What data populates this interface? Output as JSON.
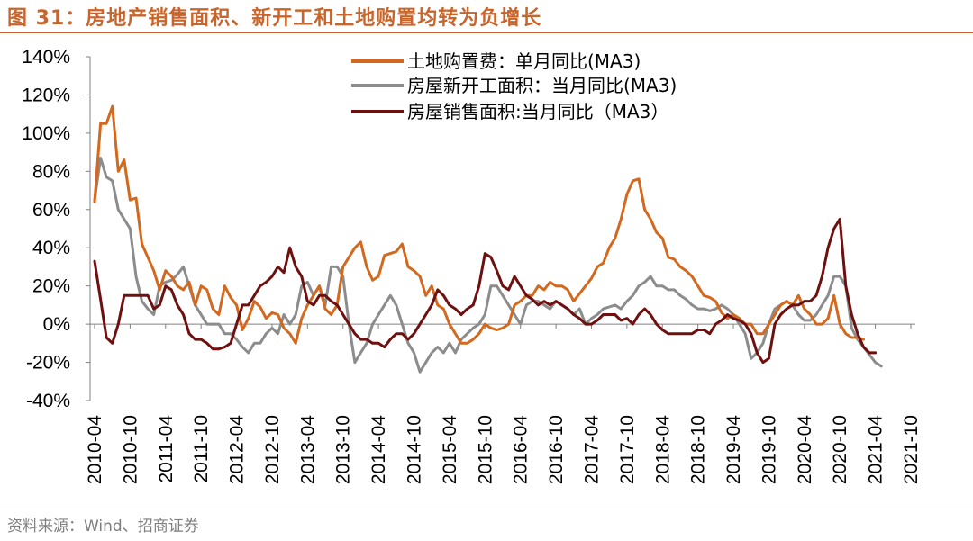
{
  "figure": {
    "label": "图 31：",
    "title": "房地产销售面积、新开工和土地购置均转为负增长",
    "source": "资料来源：Wind、招商证券"
  },
  "chart_data": {
    "type": "line",
    "title": "房地产销售面积、新开工和土地购置均转为负增长",
    "xlabel": "",
    "ylabel": "",
    "ylim": [
      -40,
      140
    ],
    "y_ticks": [
      "140%",
      "120%",
      "100%",
      "80%",
      "60%",
      "40%",
      "20%",
      "0%",
      "-20%",
      "-40%"
    ],
    "y_tick_values": [
      140,
      120,
      100,
      80,
      60,
      40,
      20,
      0,
      -20,
      -40
    ],
    "x_tick_labels": [
      "2010-04",
      "2010-10",
      "2011-04",
      "2011-10",
      "2012-04",
      "2012-10",
      "2013-04",
      "2013-10",
      "2014-04",
      "2014-10",
      "2015-04",
      "2015-10",
      "2016-04",
      "2016-10",
      "2017-04",
      "2017-10",
      "2018-04",
      "2018-10",
      "2019-04",
      "2019-10",
      "2020-04",
      "2020-10",
      "2021-04",
      "2021-10"
    ],
    "x_start": "2010-04",
    "legend_position": "top-center",
    "grid": false,
    "series": [
      {
        "name": "土地购置费：单月同比(MA3)",
        "color": "#d2691e",
        "values": [
          64,
          105,
          105,
          114,
          80,
          86,
          65,
          66,
          42,
          35,
          28,
          18,
          28,
          25,
          20,
          18,
          22,
          10,
          20,
          18,
          8,
          5,
          20,
          14,
          10,
          -3,
          3,
          12,
          9,
          3,
          6,
          5,
          -2,
          -5,
          -10,
          3,
          10,
          15,
          20,
          8,
          5,
          10,
          30,
          35,
          40,
          43,
          30,
          23,
          25,
          36,
          37,
          38,
          42,
          30,
          28,
          25,
          15,
          20,
          10,
          8,
          0,
          -5,
          -10,
          -10,
          -8,
          -5,
          0,
          -2,
          -3,
          -2,
          0,
          10,
          12,
          15,
          15,
          20,
          18,
          22,
          20,
          20,
          18,
          12,
          16,
          20,
          24,
          30,
          32,
          40,
          45,
          55,
          68,
          75,
          76,
          60,
          55,
          48,
          45,
          35,
          34,
          30,
          28,
          25,
          20,
          15,
          14,
          12,
          6,
          3,
          5,
          3,
          0,
          0,
          -5,
          -5,
          0,
          5,
          10,
          12,
          10,
          15,
          8,
          5,
          0,
          0,
          3,
          15,
          0,
          -5,
          -7,
          -7,
          -8
        ]
      },
      {
        "name": "房屋新开工面积：当月同比(MA3)",
        "color": "#8c8c8c",
        "values": [
          65,
          87,
          77,
          75,
          60,
          55,
          50,
          25,
          12,
          8,
          5,
          20,
          22,
          23,
          26,
          30,
          20,
          10,
          5,
          0,
          0,
          0,
          -5,
          -5,
          -8,
          -12,
          -15,
          -10,
          -10,
          -5,
          -2,
          -5,
          5,
          0,
          5,
          20,
          22,
          15,
          20,
          10,
          30,
          30,
          25,
          0,
          -20,
          -15,
          -10,
          0,
          5,
          10,
          15,
          10,
          0,
          -10,
          -15,
          -25,
          -20,
          -15,
          -12,
          -15,
          -10,
          -15,
          -8,
          -5,
          -2,
          0,
          5,
          20,
          20,
          15,
          10,
          5,
          0,
          10,
          12,
          12,
          10,
          8,
          12,
          10,
          8,
          5,
          8,
          0,
          3,
          5,
          8,
          9,
          10,
          8,
          12,
          15,
          20,
          22,
          25,
          20,
          20,
          18,
          18,
          15,
          13,
          10,
          8,
          8,
          7,
          8,
          10,
          8,
          5,
          0,
          -5,
          -18,
          -15,
          -10,
          0,
          8,
          10,
          12,
          10,
          5,
          2,
          2,
          5,
          10,
          15,
          25,
          25,
          20,
          -2,
          -8,
          -12,
          -16,
          -20,
          -22
        ]
      },
      {
        "name": "房屋销售面积:当月同比（MA3）",
        "color": "#6e1010",
        "values": [
          33,
          13,
          -7,
          -10,
          0,
          15,
          15,
          15,
          15,
          15,
          8,
          10,
          20,
          18,
          10,
          5,
          -5,
          -8,
          -8,
          -10,
          -13,
          -13,
          -12,
          -10,
          0,
          10,
          10,
          15,
          20,
          22,
          25,
          30,
          27,
          40,
          30,
          25,
          12,
          10,
          15,
          15,
          12,
          10,
          5,
          0,
          -5,
          -8,
          -8,
          -10,
          -10,
          -12,
          -8,
          -5,
          -5,
          -8,
          -5,
          0,
          5,
          10,
          18,
          15,
          10,
          8,
          5,
          8,
          10,
          20,
          37,
          35,
          28,
          20,
          18,
          25,
          20,
          15,
          13,
          10,
          12,
          10,
          12,
          10,
          8,
          5,
          3,
          0,
          0,
          2,
          5,
          5,
          5,
          2,
          3,
          0,
          5,
          8,
          5,
          0,
          -3,
          -5,
          -5,
          -5,
          -5,
          -5,
          -3,
          -3,
          -5,
          0,
          2,
          5,
          3,
          2,
          0,
          -5,
          -15,
          -20,
          -18,
          0,
          5,
          8,
          10,
          10,
          12,
          12,
          15,
          25,
          40,
          50,
          55,
          20,
          5,
          -5,
          -12,
          -15,
          -15
        ]
      }
    ]
  }
}
